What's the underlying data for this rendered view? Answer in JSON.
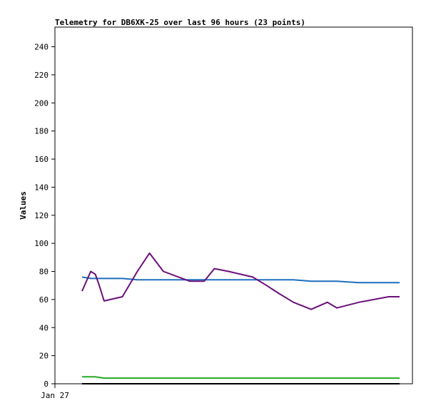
{
  "chart_data": {
    "type": "line",
    "title": "Telemetry for DB6XK-25 over last 96 hours (23 points)",
    "xlabel": "",
    "ylabel": "Values",
    "ylim": [
      0,
      254
    ],
    "yticks": [
      "0",
      "20",
      "40",
      "60",
      "80",
      "100",
      "120",
      "140",
      "160",
      "180",
      "200",
      "220",
      "240"
    ],
    "xticks": [
      "Jan 27"
    ],
    "grid": false,
    "colors": [
      "#1f6fbf",
      "#6b0f7a",
      "#22aa22",
      "#000000"
    ],
    "x": [
      0,
      4.1,
      6.3,
      8.2,
      10.5,
      19.2,
      26.3,
      32.1,
      38.7,
      51.3,
      58.1,
      63.0,
      69.7,
      81.2,
      87.8,
      94.0,
      100.6,
      109.0,
      116.7,
      121.3,
      131.7,
      145.9,
      151.1
    ],
    "series": [
      {
        "color": "#1f6fbf",
        "values": [
          76,
          75,
          75,
          75,
          75,
          75,
          74,
          74,
          74,
          74,
          74,
          74,
          74,
          74,
          74,
          74,
          74,
          73,
          73,
          73,
          72,
          72,
          72
        ]
      },
      {
        "color": "#6b0f7a",
        "values": [
          66,
          80,
          78,
          70,
          59,
          62,
          80,
          93,
          80,
          73,
          73,
          82,
          80,
          76,
          70,
          64,
          58,
          53,
          58,
          54,
          58,
          62,
          62
        ]
      },
      {
        "color": "#22aa22",
        "values": [
          5,
          5,
          5,
          4.5,
          4,
          4,
          4,
          4,
          4,
          4,
          4,
          4,
          4,
          4,
          4,
          4,
          4,
          4,
          4,
          4,
          4,
          4,
          4
        ]
      },
      {
        "color": "#000000",
        "values": [
          0,
          0,
          0,
          0,
          0,
          0,
          0,
          0,
          0,
          0,
          0,
          0,
          0,
          0,
          0,
          0,
          0,
          0,
          0,
          0,
          0,
          0,
          0
        ]
      }
    ]
  }
}
